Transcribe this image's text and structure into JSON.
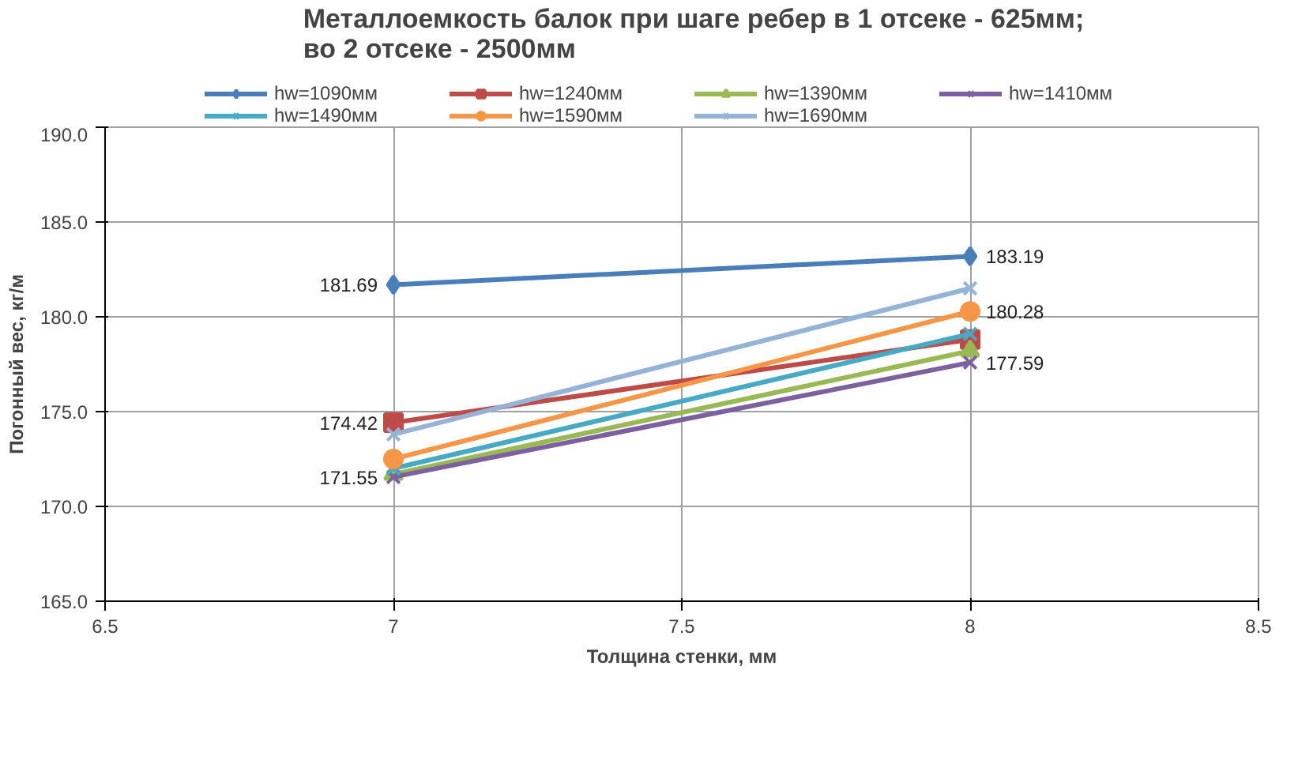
{
  "chart_data": {
    "type": "line",
    "title": "Металлоемкость балок при шаге ребер в 1 отсеке - 625мм;\nво 2 отсеке - 2500мм",
    "xlabel": "Толщина стенки, мм",
    "ylabel": "Погонный вес, кг/м",
    "x": [
      7,
      8
    ],
    "series": [
      {
        "name": "hw=1090мм",
        "color": "#4a7ebb",
        "marker": "diamond",
        "values": [
          181.69,
          183.19
        ],
        "value_labels": [
          "181.69",
          "183.19"
        ]
      },
      {
        "name": "hw=1240мм",
        "color": "#be4b48",
        "marker": "square",
        "values": [
          174.42,
          178.8
        ],
        "value_labels": [
          "174.42",
          null
        ]
      },
      {
        "name": "hw=1390мм",
        "color": "#98b954",
        "marker": "triangle",
        "values": [
          171.7,
          178.2
        ]
      },
      {
        "name": "hw=1410мм",
        "color": "#7d60a0",
        "marker": "cross",
        "values": [
          171.55,
          177.59
        ],
        "value_labels": [
          "171.55",
          "177.59"
        ]
      },
      {
        "name": "hw=1490мм",
        "color": "#46aac5",
        "marker": "cross",
        "values": [
          172.0,
          179.1
        ]
      },
      {
        "name": "hw=1590мм",
        "color": "#f79646",
        "marker": "circle",
        "values": [
          172.5,
          180.28
        ],
        "value_labels": [
          null,
          "180.28"
        ]
      },
      {
        "name": "hw=1690мм",
        "color": "#95b3d7",
        "marker": "cross",
        "values": [
          173.8,
          181.5
        ]
      }
    ],
    "xlim": [
      6.5,
      8.5
    ],
    "xticks": [
      6.5,
      7,
      7.5,
      8,
      8.5
    ],
    "ylim": [
      165,
      190
    ],
    "yticks": [
      {
        "value": 165,
        "label": "165.0"
      },
      {
        "value": 170,
        "label": "170.0"
      },
      {
        "value": 175,
        "label": "175.0"
      },
      {
        "value": 180,
        "label": "180.0"
      },
      {
        "value": 185,
        "label": "185.0"
      },
      {
        "value": 190,
        "label": "190.0"
      }
    ],
    "grid": true,
    "legend": "top",
    "line_style": "solid"
  }
}
